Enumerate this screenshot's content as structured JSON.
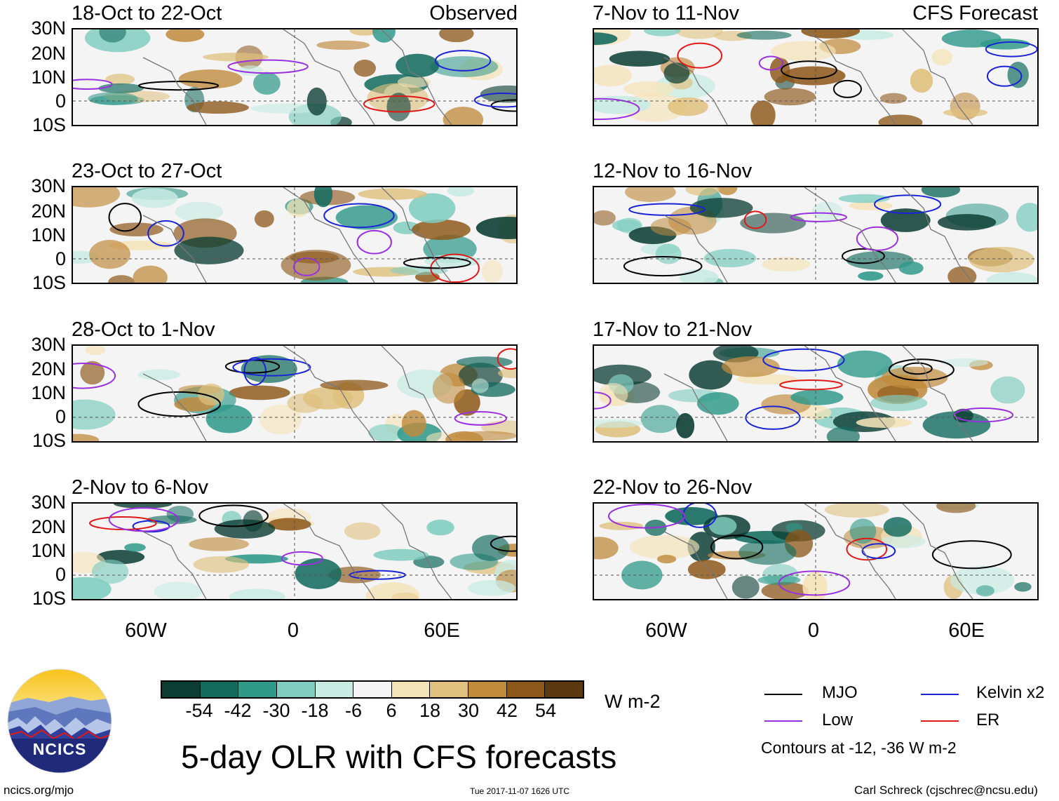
{
  "header_labels": {
    "observed": "Observed",
    "forecast": "CFS Forecast"
  },
  "panels": [
    {
      "title": "18-Oct to 22-Oct",
      "column": "left",
      "row": 0
    },
    {
      "title": "23-Oct to 27-Oct",
      "column": "left",
      "row": 1
    },
    {
      "title": "28-Oct to 1-Nov",
      "column": "left",
      "row": 2
    },
    {
      "title": "2-Nov to 6-Nov",
      "column": "left",
      "row": 3
    },
    {
      "title": "7-Nov to 11-Nov",
      "column": "right",
      "row": 0
    },
    {
      "title": "12-Nov to 16-Nov",
      "column": "right",
      "row": 1
    },
    {
      "title": "17-Nov to 21-Nov",
      "column": "right",
      "row": 2
    },
    {
      "title": "22-Nov to 26-Nov",
      "column": "right",
      "row": 3
    }
  ],
  "y_axis_labels": [
    "30N",
    "20N",
    "10N",
    "0",
    "10S"
  ],
  "x_axis_labels": [
    "60W",
    "0",
    "60E"
  ],
  "colorbar": {
    "colors": [
      "#0b3d33",
      "#136b5e",
      "#2f998a",
      "#7fcdbf",
      "#c8ebe3",
      "#f4f4f4",
      "#f5e3b8",
      "#dfc07d",
      "#c08a3c",
      "#8d5719",
      "#5c3810"
    ],
    "labels": [
      "-54",
      "-42",
      "-30",
      "-18",
      "-6",
      "6",
      "18",
      "30",
      "42",
      "54"
    ],
    "units": "W m-2"
  },
  "legend": {
    "items": [
      {
        "label": "MJO",
        "color": "#000000"
      },
      {
        "label": "Kelvin x2",
        "color": "#1a24d6"
      },
      {
        "label": "Low",
        "color": "#9b30e0"
      },
      {
        "label": "ER",
        "color": "#e01818"
      }
    ],
    "contour_note": "Contours at -12, -36 W m-2"
  },
  "main_title": "5-day OLR with CFS forecasts",
  "logo_text": "NCICS",
  "footer": {
    "url": "ncics.org/mjo",
    "timestamp": "Tue 2017-11-07 1626 UTC",
    "author": "Carl Schreck (cjschrec@ncsu.edu)"
  }
}
